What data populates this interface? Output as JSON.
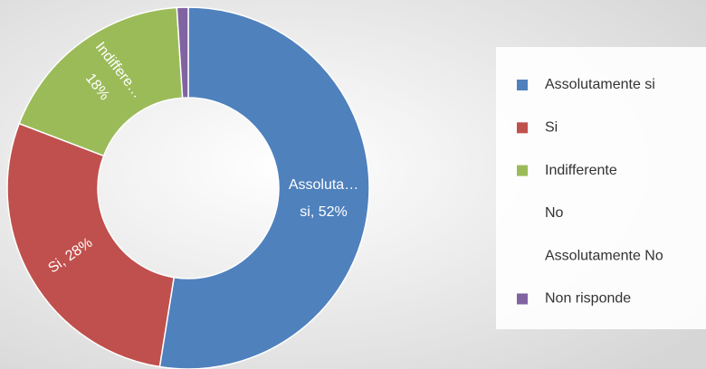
{
  "chart_data": {
    "type": "donut",
    "categories": [
      "Assolutamente si",
      "Si",
      "Indifferente",
      "No",
      "Assolutamente No",
      "Non risponde"
    ],
    "values": [
      52,
      28,
      18,
      0,
      0,
      1
    ],
    "value_labels": [
      [
        "Assoluta…",
        "si, 52%"
      ],
      [
        "Si, 28%"
      ],
      [
        "Indiffere…",
        "18%"
      ],
      null,
      null,
      null
    ],
    "colors": [
      "#4f81bd",
      "#c0504d",
      "#9bbb59",
      null,
      null,
      "#8064a2"
    ],
    "legend": "right"
  }
}
